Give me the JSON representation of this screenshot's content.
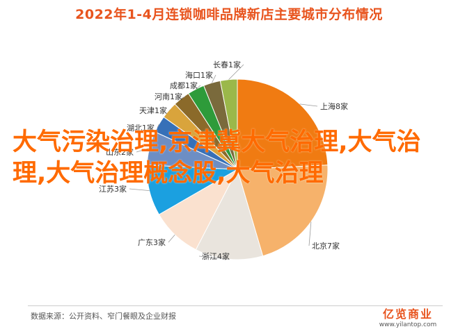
{
  "chart_data": {
    "type": "pie",
    "title": "2022年1-4月连锁咖啡品牌新店主要城市分布情况",
    "slices": [
      {
        "label": "上海8家",
        "value": 8,
        "color": "#f07b12"
      },
      {
        "label": "北京7家",
        "value": 7,
        "color": "#f6b26b"
      },
      {
        "label": "浙江4家",
        "value": 4,
        "color": "#e9e4dd"
      },
      {
        "label": "广东3家",
        "value": 3,
        "color": "#fae1cf"
      },
      {
        "label": "江苏3家",
        "value": 3,
        "color": "#1ba0e0"
      },
      {
        "label": "山东2家",
        "value": 2,
        "color": "#6d8ec4"
      },
      {
        "label": "湖北1家",
        "value": 1,
        "color": "#3670b8"
      },
      {
        "label": "天津1家",
        "value": 1,
        "color": "#d9a43c"
      },
      {
        "label": "河南1家",
        "value": 1,
        "color": "#8b6a2a"
      },
      {
        "label": "成都1家",
        "value": 1,
        "color": "#2e9b3a"
      },
      {
        "label": "海口1家",
        "value": 1,
        "color": "#7a6a3c"
      },
      {
        "label": "长春1家",
        "value": 1,
        "color": "#9bb84a"
      }
    ]
  },
  "overlay_text": "大气污染治理,京津冀大气治理,大气治理,大气治理概念股,大气治理",
  "footer": {
    "source": "数据来源：公开资料、窄门餐眼及企业财报",
    "brand_name": "亿览商业",
    "brand_url": "www.yilantop.com"
  }
}
